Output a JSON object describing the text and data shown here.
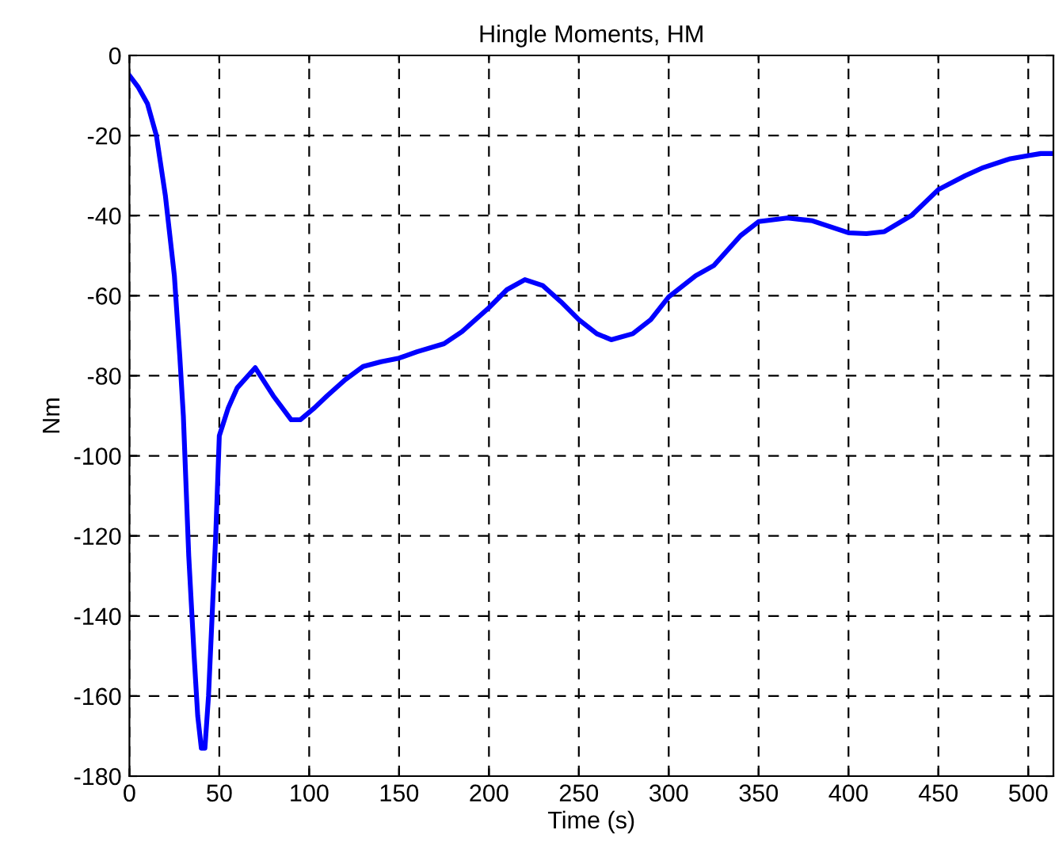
{
  "chart_data": {
    "type": "line",
    "title": "Hingle Moments, HM",
    "xlabel": "Time (s)",
    "ylabel": "Nm",
    "xlim": [
      0,
      514
    ],
    "ylim": [
      -180,
      0
    ],
    "xticks": [
      0,
      50,
      100,
      150,
      200,
      250,
      300,
      350,
      400,
      450,
      500
    ],
    "yticks": [
      -180,
      -160,
      -140,
      -120,
      -100,
      -80,
      -60,
      -40,
      -20,
      0
    ],
    "grid": true,
    "legend": false,
    "series": [
      {
        "color": "#0000ff",
        "line_style": "solid",
        "x": [
          0,
          5,
          10,
          15,
          20,
          25,
          28,
          30,
          33,
          36,
          38,
          40,
          42,
          44,
          46,
          48,
          50,
          55,
          60,
          70,
          80,
          90,
          95,
          103,
          110,
          120,
          130,
          140,
          150,
          160,
          175,
          185,
          200,
          210,
          220,
          230,
          240,
          250,
          260,
          268,
          280,
          290,
          300,
          315,
          325,
          340,
          350,
          366,
          380,
          390,
          400,
          410,
          420,
          435,
          450,
          465,
          475,
          490,
          500,
          507,
          514
        ],
        "values": [
          -5,
          -8,
          -12,
          -20,
          -35,
          -55,
          -75,
          -90,
          -125,
          -150,
          -165,
          -173,
          -173,
          -160,
          -140,
          -120,
          -95,
          -88,
          -83,
          -78,
          -85,
          -91,
          -91,
          -88,
          -85,
          -81,
          -77.7,
          -76.5,
          -75.6,
          -74,
          -72,
          -69,
          -63,
          -58.5,
          -56,
          -57.5,
          -61.5,
          -66,
          -69.5,
          -71,
          -69.5,
          -66,
          -60.3,
          -55,
          -52.5,
          -45,
          -41.5,
          -40.6,
          -41.3,
          -42.8,
          -44.3,
          -44.5,
          -44,
          -40,
          -33.5,
          -30,
          -28,
          -25.8,
          -25,
          -24.5,
          -24.5
        ]
      }
    ]
  }
}
